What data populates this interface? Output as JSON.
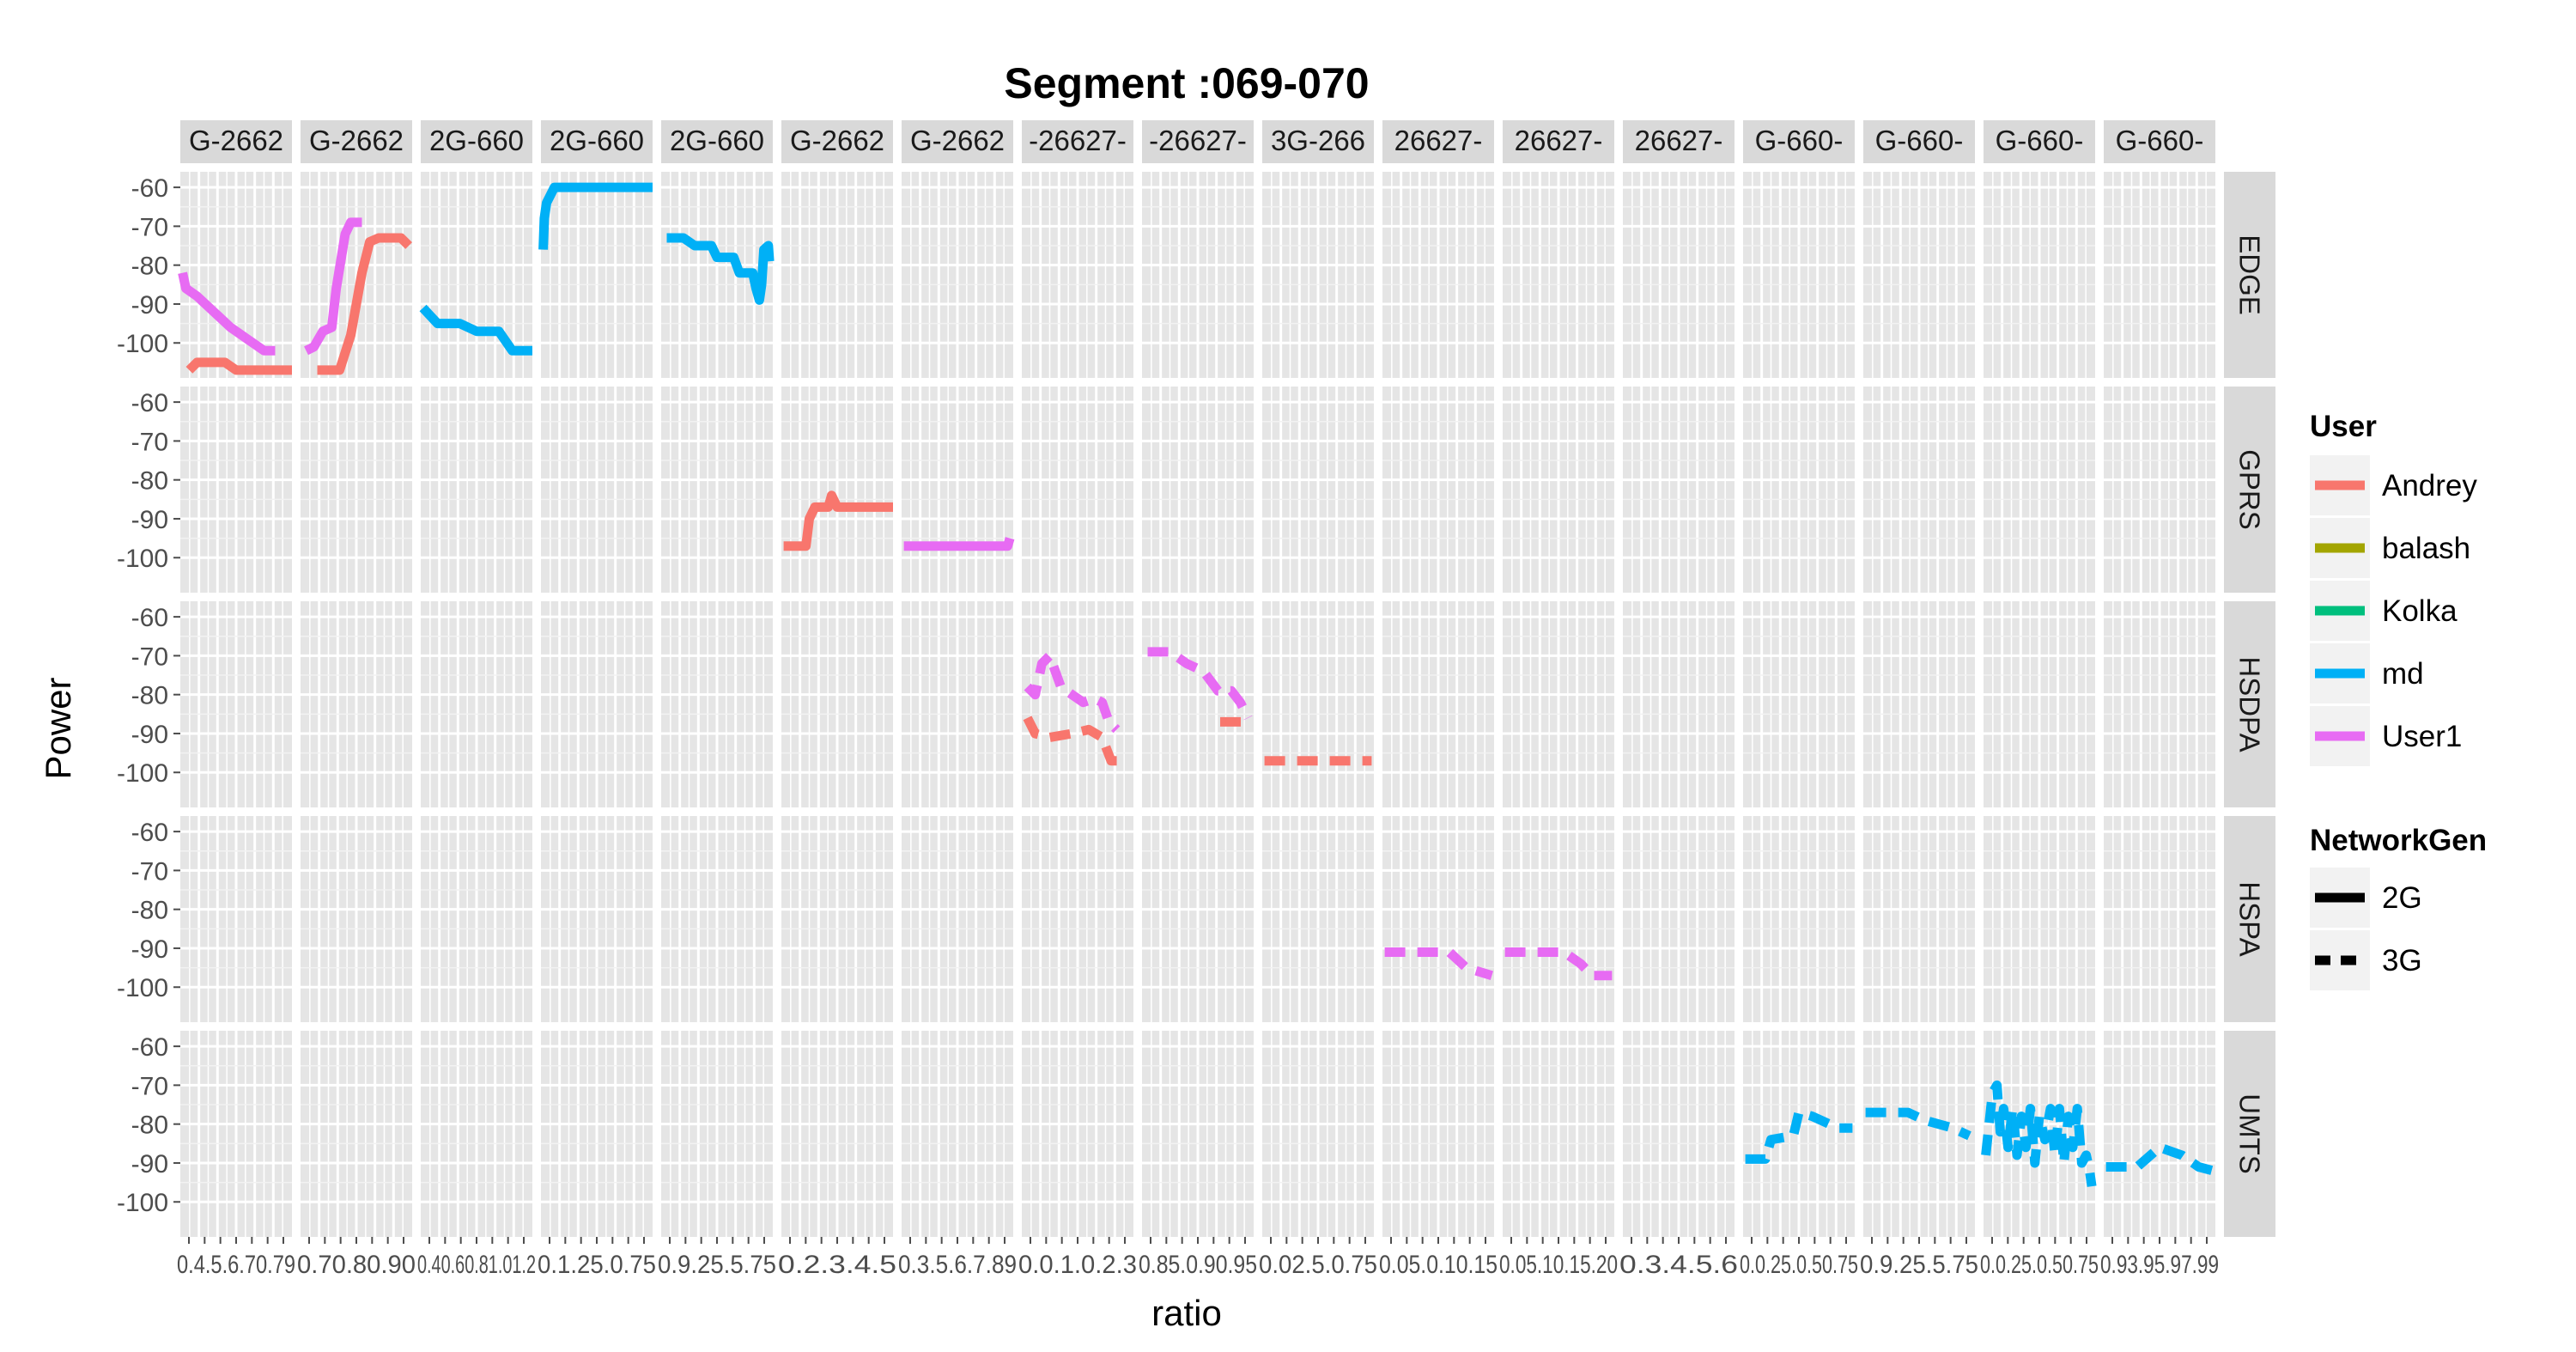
{
  "chart_data": {
    "type": "line",
    "title": "Segment :069-070",
    "xlabel": "ratio",
    "ylabel": "Power",
    "y_ticks": [
      -60,
      -70,
      -80,
      -90,
      -100
    ],
    "ylim": [
      -109,
      -56
    ],
    "grid": true,
    "legend_position": "right",
    "column_strips": [
      "G-2662",
      "G-2662",
      "2G-660",
      "2G-660",
      "2G-660",
      "G-2662",
      "G-2662",
      "-26627-",
      "-26627-",
      "3G-266",
      "26627-",
      "26627-",
      "26627-",
      "G-660-",
      "G-660-",
      "G-660-",
      "G-660-"
    ],
    "row_strips": [
      "EDGE",
      "GPRS",
      "HSDPA",
      "HSPA",
      "UMTS"
    ],
    "x_tick_labels": [
      "0.4.5.6.70.79",
      "0.70.80.90",
      "0.40.60.81.01.2",
      "0.1.25.0.75",
      "0.9.25.5.75",
      "0.2.3.4.5",
      "0.3.5.6.7.89",
      "0.0.1.0.2.3",
      "0.85.0.90.95",
      "0.02.5.0.75",
      "0.05.0.10.15",
      "0.05.10.15.20",
      "0.3.4.5.6",
      "0.0.25.0.50.75",
      "0.9.25.5.75",
      "0.0.25.0.50.75",
      "0.93.95.97.99"
    ],
    "legend": {
      "user_title": "User",
      "users": [
        {
          "name": "Andrey",
          "color": "#f8766d"
        },
        {
          "name": "balash",
          "color": "#a3a500"
        },
        {
          "name": "Kolka",
          "color": "#00bf7d"
        },
        {
          "name": "md",
          "color": "#00b0f6"
        },
        {
          "name": "User1",
          "color": "#e76bf3"
        }
      ],
      "gen_title": "NetworkGen",
      "gens": [
        {
          "name": "2G",
          "linetype": "solid"
        },
        {
          "name": "3G",
          "linetype": "dashed"
        }
      ]
    },
    "series": [
      {
        "panel": [
          0,
          0
        ],
        "user": "User1",
        "gen": "2G",
        "points": [
          [
            0.02,
            -82
          ],
          [
            0.05,
            -86
          ],
          [
            0.15,
            -88
          ],
          [
            0.3,
            -92
          ],
          [
            0.45,
            -96
          ],
          [
            0.6,
            -99
          ],
          [
            0.75,
            -102
          ],
          [
            0.85,
            -102
          ]
        ]
      },
      {
        "panel": [
          0,
          0
        ],
        "user": "Andrey",
        "gen": "2G",
        "points": [
          [
            0.08,
            -107
          ],
          [
            0.15,
            -105
          ],
          [
            0.4,
            -105
          ],
          [
            0.5,
            -107
          ],
          [
            1.0,
            -107
          ]
        ]
      },
      {
        "panel": [
          0,
          1
        ],
        "user": "User1",
        "gen": "2G",
        "points": [
          [
            0.05,
            -102
          ],
          [
            0.12,
            -101
          ],
          [
            0.2,
            -97
          ],
          [
            0.28,
            -96
          ],
          [
            0.32,
            -86
          ],
          [
            0.4,
            -72
          ],
          [
            0.45,
            -69
          ],
          [
            0.55,
            -69
          ]
        ]
      },
      {
        "panel": [
          0,
          1
        ],
        "user": "Andrey",
        "gen": "2G",
        "points": [
          [
            0.15,
            -107
          ],
          [
            0.35,
            -107
          ],
          [
            0.45,
            -98
          ],
          [
            0.55,
            -82
          ],
          [
            0.62,
            -74
          ],
          [
            0.7,
            -73
          ],
          [
            0.9,
            -73
          ],
          [
            0.97,
            -75
          ]
        ]
      },
      {
        "panel": [
          0,
          2
        ],
        "user": "md",
        "gen": "2G",
        "points": [
          [
            0.02,
            -91
          ],
          [
            0.15,
            -95
          ],
          [
            0.35,
            -95
          ],
          [
            0.5,
            -97
          ],
          [
            0.7,
            -97
          ],
          [
            0.82,
            -102
          ],
          [
            1.0,
            -102
          ]
        ]
      },
      {
        "panel": [
          0,
          3
        ],
        "user": "md",
        "gen": "2G",
        "points": [
          [
            0.02,
            -76
          ],
          [
            0.03,
            -68
          ],
          [
            0.05,
            -64
          ],
          [
            0.12,
            -60
          ],
          [
            1.0,
            -60
          ]
        ]
      },
      {
        "panel": [
          0,
          4
        ],
        "user": "md",
        "gen": "2G",
        "points": [
          [
            0.05,
            -73
          ],
          [
            0.2,
            -73
          ],
          [
            0.3,
            -75
          ],
          [
            0.45,
            -75
          ],
          [
            0.5,
            -78
          ],
          [
            0.65,
            -78
          ],
          [
            0.7,
            -82
          ],
          [
            0.82,
            -82
          ],
          [
            0.85,
            -86
          ],
          [
            0.88,
            -89
          ],
          [
            0.9,
            -85
          ],
          [
            0.92,
            -76
          ],
          [
            0.96,
            -75
          ],
          [
            0.97,
            -79
          ]
        ]
      },
      {
        "panel": [
          1,
          5
        ],
        "user": "Andrey",
        "gen": "2G",
        "points": [
          [
            0.02,
            -97
          ],
          [
            0.22,
            -97
          ],
          [
            0.25,
            -90
          ],
          [
            0.3,
            -87
          ],
          [
            0.42,
            -87
          ],
          [
            0.45,
            -84
          ],
          [
            0.5,
            -87
          ],
          [
            1.0,
            -87
          ]
        ]
      },
      {
        "panel": [
          1,
          6
        ],
        "user": "User1",
        "gen": "2G",
        "points": [
          [
            0.02,
            -97
          ],
          [
            0.95,
            -97
          ],
          [
            0.97,
            -95
          ]
        ]
      },
      {
        "panel": [
          2,
          7
        ],
        "user": "User1",
        "gen": "3G",
        "points": [
          [
            0.05,
            -78
          ],
          [
            0.12,
            -80
          ],
          [
            0.18,
            -72
          ],
          [
            0.25,
            -70
          ],
          [
            0.35,
            -78
          ],
          [
            0.45,
            -80
          ],
          [
            0.55,
            -82
          ],
          [
            0.65,
            -81
          ],
          [
            0.72,
            -82
          ],
          [
            0.78,
            -87
          ],
          [
            0.85,
            -89
          ]
        ]
      },
      {
        "panel": [
          2,
          7
        ],
        "user": "Andrey",
        "gen": "3G",
        "points": [
          [
            0.05,
            -86
          ],
          [
            0.12,
            -90
          ],
          [
            0.25,
            -91
          ],
          [
            0.45,
            -90
          ],
          [
            0.6,
            -89
          ],
          [
            0.72,
            -91
          ],
          [
            0.8,
            -97
          ],
          [
            0.95,
            -97
          ]
        ]
      },
      {
        "panel": [
          2,
          8
        ],
        "user": "User1",
        "gen": "3G",
        "points": [
          [
            0.05,
            -69
          ],
          [
            0.25,
            -69
          ],
          [
            0.4,
            -72
          ],
          [
            0.55,
            -74
          ],
          [
            0.68,
            -79
          ],
          [
            0.8,
            -79
          ],
          [
            0.88,
            -82
          ],
          [
            0.95,
            -86
          ]
        ]
      },
      {
        "panel": [
          2,
          8
        ],
        "user": "Andrey",
        "gen": "3G",
        "points": [
          [
            0.7,
            -87
          ],
          [
            0.92,
            -87
          ]
        ]
      },
      {
        "panel": [
          2,
          9
        ],
        "user": "Andrey",
        "gen": "3G",
        "points": [
          [
            0.02,
            -97
          ],
          [
            0.98,
            -97
          ]
        ]
      },
      {
        "panel": [
          3,
          10
        ],
        "user": "User1",
        "gen": "3G",
        "points": [
          [
            0.02,
            -91
          ],
          [
            0.6,
            -91
          ],
          [
            0.75,
            -95
          ],
          [
            0.98,
            -97
          ]
        ]
      },
      {
        "panel": [
          3,
          11
        ],
        "user": "User1",
        "gen": "3G",
        "points": [
          [
            0.02,
            -91
          ],
          [
            0.55,
            -91
          ],
          [
            0.7,
            -94
          ],
          [
            0.8,
            -97
          ],
          [
            0.98,
            -97
          ]
        ]
      },
      {
        "panel": [
          4,
          13
        ],
        "user": "md",
        "gen": "3G",
        "points": [
          [
            0.02,
            -89
          ],
          [
            0.2,
            -89
          ],
          [
            0.25,
            -84
          ],
          [
            0.45,
            -83
          ],
          [
            0.5,
            -77
          ],
          [
            0.62,
            -78
          ],
          [
            0.85,
            -81
          ],
          [
            0.98,
            -81
          ]
        ]
      },
      {
        "panel": [
          4,
          14
        ],
        "user": "md",
        "gen": "3G",
        "points": [
          [
            0.02,
            -77
          ],
          [
            0.4,
            -77
          ],
          [
            0.55,
            -79
          ],
          [
            0.8,
            -81
          ],
          [
            0.95,
            -83
          ]
        ]
      },
      {
        "panel": [
          4,
          15
        ],
        "user": "md",
        "gen": "3G",
        "points": [
          [
            0.02,
            -88
          ],
          [
            0.05,
            -80
          ],
          [
            0.08,
            -72
          ],
          [
            0.12,
            -70
          ],
          [
            0.15,
            -82
          ],
          [
            0.18,
            -76
          ],
          [
            0.22,
            -86
          ],
          [
            0.26,
            -76
          ],
          [
            0.3,
            -88
          ],
          [
            0.34,
            -78
          ],
          [
            0.38,
            -86
          ],
          [
            0.42,
            -76
          ],
          [
            0.46,
            -90
          ],
          [
            0.5,
            -78
          ],
          [
            0.55,
            -84
          ],
          [
            0.6,
            -76
          ],
          [
            0.64,
            -88
          ],
          [
            0.68,
            -76
          ],
          [
            0.72,
            -90
          ],
          [
            0.76,
            -78
          ],
          [
            0.8,
            -86
          ],
          [
            0.84,
            -76
          ],
          [
            0.88,
            -90
          ],
          [
            0.92,
            -88
          ],
          [
            0.95,
            -92
          ],
          [
            0.97,
            -96
          ]
        ]
      },
      {
        "panel": [
          4,
          16
        ],
        "user": "md",
        "gen": "3G",
        "points": [
          [
            0.02,
            -91
          ],
          [
            0.3,
            -91
          ],
          [
            0.5,
            -86
          ],
          [
            0.7,
            -88
          ],
          [
            0.85,
            -91
          ],
          [
            0.98,
            -92
          ]
        ]
      }
    ]
  }
}
